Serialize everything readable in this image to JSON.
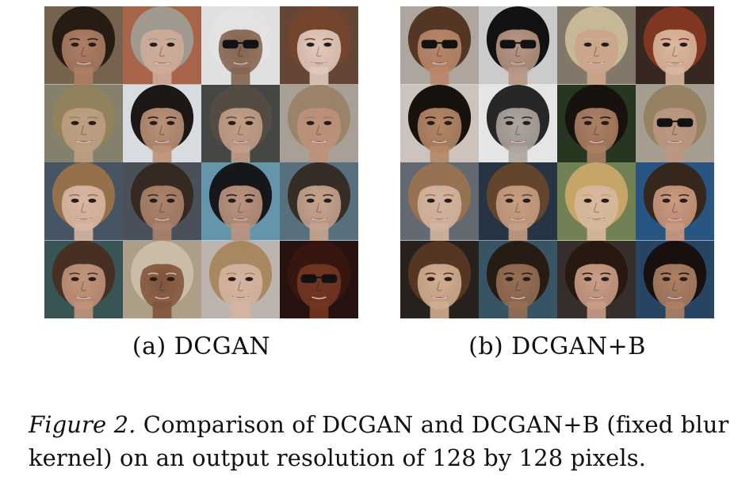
{
  "panels": [
    {
      "id": "a",
      "caption": "(a) DCGAN",
      "samples": [
        {
          "bg": "#7d6a52",
          "skin": "#b9866a",
          "hair": "#2a1e16",
          "glasses": false
        },
        {
          "bg": "#b46c4f",
          "skin": "#dcb6a3",
          "hair": "#a9a39a",
          "glasses": false
        },
        {
          "bg": "#f0eeee",
          "skin": "#8c6b55",
          "hair": "#f3f1f1",
          "glasses": true
        },
        {
          "bg": "#6c4a3a",
          "skin": "#f0d6c9",
          "hair": "#7a4a2f",
          "glasses": false
        },
        {
          "bg": "#8c8a73",
          "skin": "#c9a98a",
          "hair": "#9c8b62",
          "glasses": false
        },
        {
          "bg": "#e6e9ee",
          "skin": "#c79a7e",
          "hair": "#1f1a18",
          "glasses": false
        },
        {
          "bg": "#4a4c4a",
          "skin": "#cfa891",
          "hair": "#5a5048",
          "glasses": false
        },
        {
          "bg": "#b3aba0",
          "skin": "#c99b82",
          "hair": "#a58c70",
          "glasses": false
        },
        {
          "bg": "#4b5a6a",
          "skin": "#e6c2ad",
          "hair": "#a07850",
          "glasses": false
        },
        {
          "bg": "#4e5660",
          "skin": "#b88b73",
          "hair": "#3a2c24",
          "glasses": false
        },
        {
          "bg": "#6b9fb8",
          "skin": "#c89d88",
          "hair": "#17191d",
          "glasses": false
        },
        {
          "bg": "#5e7686",
          "skin": "#d3ae98",
          "hair": "#3a302a",
          "glasses": false
        },
        {
          "bg": "#3c5a5a",
          "skin": "#cf9d83",
          "hair": "#4c3426",
          "glasses": false
        },
        {
          "bg": "#b8a890",
          "skin": "#8a5a40",
          "hair": "#d8c8b2",
          "glasses": false
        },
        {
          "bg": "#c9c0b8",
          "skin": "#e2c0aa",
          "hair": "#b49068",
          "glasses": false
        },
        {
          "bg": "#2a1410",
          "skin": "#7a3a24",
          "hair": "#3a1810",
          "glasses": true
        }
      ]
    },
    {
      "id": "b",
      "caption": "(b) DCGAN+B",
      "samples": [
        {
          "bg": "#b8b0a8",
          "skin": "#c49070",
          "hair": "#5a3a28",
          "glasses": true
        },
        {
          "bg": "#d8d8d8",
          "skin": "#c4a08c",
          "hair": "#141414",
          "glasses": true
        },
        {
          "bg": "#8a8070",
          "skin": "#d8b094",
          "hair": "#d4c4a0",
          "glasses": false
        },
        {
          "bg": "#3a2a24",
          "skin": "#e8c4a8",
          "hair": "#8a3a24",
          "glasses": false
        },
        {
          "bg": "#d8d0c8",
          "skin": "#c0906c",
          "hair": "#1a1410",
          "glasses": false
        },
        {
          "bg": "#f4f4f4",
          "skin": "#b8b0a8",
          "hair": "#2a2a2a",
          "glasses": false
        },
        {
          "bg": "#2a3a24",
          "skin": "#b8886a",
          "hair": "#1a1410",
          "glasses": false
        },
        {
          "bg": "#b0a89a",
          "skin": "#c8a08a",
          "hair": "#a08a6a",
          "glasses": true
        },
        {
          "bg": "#6a7078",
          "skin": "#e2c0aa",
          "hair": "#a07a58",
          "glasses": false
        },
        {
          "bg": "#2a3848",
          "skin": "#d4a88a",
          "hair": "#6a4a30",
          "glasses": false
        },
        {
          "bg": "#7a8a5a",
          "skin": "#e6c4a8",
          "hair": "#d4b070",
          "glasses": false
        },
        {
          "bg": "#2a5a8a",
          "skin": "#d8a488",
          "hair": "#3a2a1e",
          "glasses": false
        },
        {
          "bg": "#2a2420",
          "skin": "#e0b89a",
          "hair": "#5a3a26",
          "glasses": false
        },
        {
          "bg": "#3a5a6a",
          "skin": "#a0765a",
          "hair": "#2a1e16",
          "glasses": false
        },
        {
          "bg": "#3a3030",
          "skin": "#d8a890",
          "hair": "#2a1a12",
          "glasses": false
        },
        {
          "bg": "#2a4a6a",
          "skin": "#b8886c",
          "hair": "#1a1210",
          "glasses": false
        }
      ]
    }
  ],
  "figure_caption": {
    "label": "Figure 2.",
    "text": "Comparison of DCGAN and DCGAN+B (fixed blur kernel) on an output resolution of 128 by 128 pixels."
  }
}
